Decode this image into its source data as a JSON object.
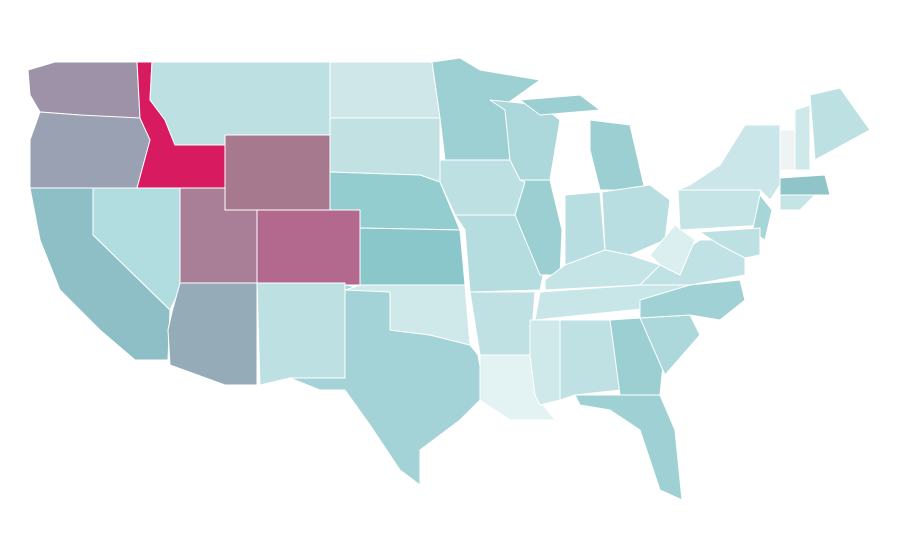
{
  "map": {
    "regions": [
      {
        "color": "#9e92a8"
      },
      {
        "color": "#9aa1b2"
      },
      {
        "color": "#d81b60"
      },
      {
        "color": "#bde0e2"
      },
      {
        "color": "#a7798f"
      },
      {
        "color": "#cfe7e9"
      },
      {
        "color": "#c1e1e3"
      },
      {
        "color": "#94cdd0"
      },
      {
        "color": "#8ac7ca"
      },
      {
        "color": "#b3698d"
      },
      {
        "color": "#a97f98"
      },
      {
        "color": "#b2dde0"
      },
      {
        "color": "#8fbfc6"
      },
      {
        "color": "#95abb8"
      },
      {
        "color": "#bde0e2"
      },
      {
        "color": "#a3d3d6"
      },
      {
        "color": "#cfe8ea"
      },
      {
        "color": "#9dd0d3"
      },
      {
        "color": "#bde0e2"
      },
      {
        "color": "#b5dcdf"
      },
      {
        "color": "#bfe1e3"
      },
      {
        "color": "#e3f2f3"
      },
      {
        "color": "#acd8db"
      },
      {
        "color": "#9ccfd2"
      },
      {
        "color": "#9bcfd2"
      },
      {
        "color": "#b9dee1"
      },
      {
        "color": "#b9dee1"
      },
      {
        "color": "#c5e4e6"
      },
      {
        "color": "#c8e6e8"
      },
      {
        "color": "#cfe8ea"
      },
      {
        "color": "#bfe1e3"
      },
      {
        "color": "#9ccfd2"
      },
      {
        "color": "#9fd1d4"
      },
      {
        "color": "#acd8db"
      },
      {
        "color": "#a0d1d4"
      },
      {
        "color": "#c0e2e4"
      },
      {
        "color": "#dceff0"
      },
      {
        "color": "#c5e4e6"
      },
      {
        "color": "#cbe6e8"
      },
      {
        "color": "#a7d6d9"
      },
      {
        "color": "#bde0e2"
      },
      {
        "color": "#eef3f4"
      },
      {
        "color": "#cfe8ea"
      },
      {
        "color": "#bde0e2"
      },
      {
        "color": "#8fc4c9"
      },
      {
        "color": "#c5e4e6"
      }
    ]
  }
}
